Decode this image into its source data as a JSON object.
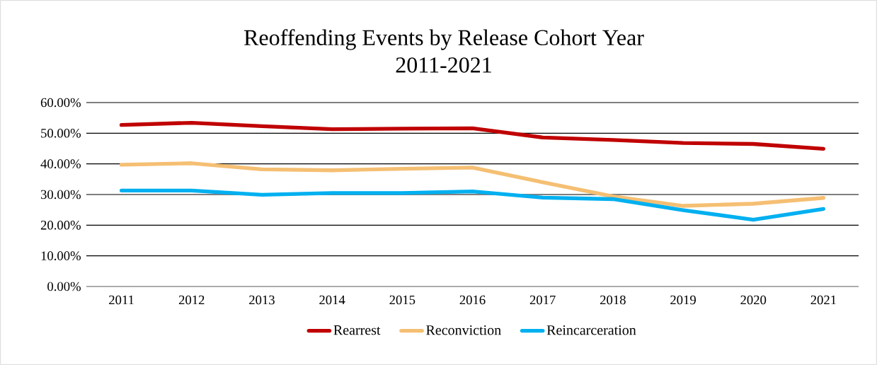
{
  "chart_data": {
    "type": "line",
    "title": "Reoffending Events by Release Cohort Year",
    "subtitle": "2011-2021",
    "categories": [
      "2011",
      "2012",
      "2013",
      "2014",
      "2015",
      "2016",
      "2017",
      "2018",
      "2019",
      "2020",
      "2021"
    ],
    "series": [
      {
        "name": "Rearrest",
        "color": "#c00000",
        "values": [
          52.7,
          53.4,
          52.3,
          51.3,
          51.5,
          51.6,
          48.6,
          47.8,
          46.8,
          46.5,
          44.9
        ]
      },
      {
        "name": "Reconviction",
        "color": "#f5bf73",
        "values": [
          39.7,
          40.2,
          38.2,
          37.9,
          38.4,
          38.8,
          34.0,
          29.4,
          26.3,
          27.0,
          28.9
        ]
      },
      {
        "name": "Reincarceration",
        "color": "#00b0f0",
        "values": [
          31.3,
          31.3,
          29.9,
          30.5,
          30.5,
          31.0,
          29.0,
          28.5,
          24.9,
          21.8,
          25.3
        ]
      }
    ],
    "ylim": [
      0,
      60
    ],
    "yticks": [
      {
        "value": 0,
        "label": "0.00%"
      },
      {
        "value": 10,
        "label": "10.00%"
      },
      {
        "value": 20,
        "label": "20.00%"
      },
      {
        "value": 30,
        "label": "30.00%"
      },
      {
        "value": 40,
        "label": "40.00%"
      },
      {
        "value": 50,
        "label": "50.00%"
      },
      {
        "value": 60,
        "label": "60.00%"
      }
    ],
    "grid": "y",
    "legend": "bottom",
    "marker": "none",
    "line_style": "solid"
  }
}
